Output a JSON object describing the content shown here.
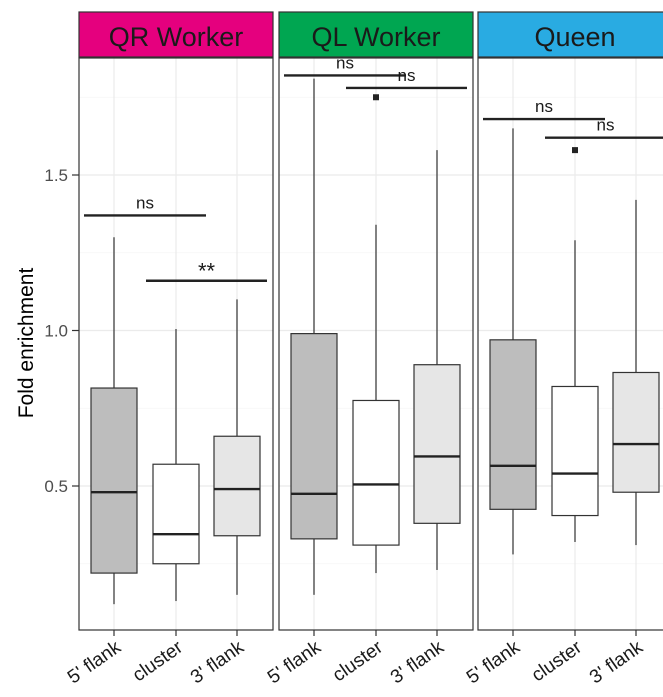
{
  "chart_data": {
    "type": "box",
    "ylabel": "Fold enrichment",
    "yticks": [
      0.5,
      1.0,
      1.5
    ],
    "ytick_labels": [
      "0.5",
      "1.0",
      "1.5"
    ],
    "ylim": [
      0.05,
      1.88
    ],
    "categories": [
      "5' flank",
      "cluster",
      "3' flank"
    ],
    "category_fills": [
      "#bdbdbd",
      "#ffffff",
      "#e6e6e6"
    ],
    "grid": true,
    "panels": [
      {
        "name": "QR Worker",
        "strip_color": "#e5007e",
        "boxes": [
          {
            "category": "5' flank",
            "whisker_low": 0.12,
            "q1": 0.22,
            "median": 0.48,
            "q3": 0.815,
            "whisker_high": 1.3,
            "outliers": []
          },
          {
            "category": "cluster",
            "whisker_low": 0.13,
            "q1": 0.25,
            "median": 0.345,
            "q3": 0.57,
            "whisker_high": 1.005,
            "outliers": []
          },
          {
            "category": "3' flank",
            "whisker_low": 0.15,
            "q1": 0.34,
            "median": 0.49,
            "q3": 0.66,
            "whisker_high": 1.1,
            "outliers": []
          }
        ],
        "comparisons": [
          {
            "from": 0,
            "to": 1,
            "y": 1.37,
            "label": "ns"
          },
          {
            "from": 1,
            "to": 2,
            "y": 1.16,
            "label": "**"
          }
        ]
      },
      {
        "name": "QL Worker",
        "strip_color": "#00a651",
        "boxes": [
          {
            "category": "5' flank",
            "whisker_low": 0.15,
            "q1": 0.33,
            "median": 0.475,
            "q3": 0.99,
            "whisker_high": 1.81,
            "outliers": []
          },
          {
            "category": "cluster",
            "whisker_low": 0.22,
            "q1": 0.31,
            "median": 0.505,
            "q3": 0.775,
            "whisker_high": 1.34,
            "outliers": [
              1.75
            ]
          },
          {
            "category": "3' flank",
            "whisker_low": 0.23,
            "q1": 0.38,
            "median": 0.595,
            "q3": 0.89,
            "whisker_high": 1.58,
            "outliers": []
          }
        ],
        "comparisons": [
          {
            "from": 0,
            "to": 1,
            "y": 1.82,
            "label": "ns"
          },
          {
            "from": 1,
            "to": 2,
            "y": 1.78,
            "label": "ns"
          }
        ]
      },
      {
        "name": "Queen",
        "strip_color": "#29abe2",
        "boxes": [
          {
            "category": "5' flank",
            "whisker_low": 0.28,
            "q1": 0.425,
            "median": 0.565,
            "q3": 0.97,
            "whisker_high": 1.65,
            "outliers": []
          },
          {
            "category": "cluster",
            "whisker_low": 0.32,
            "q1": 0.405,
            "median": 0.54,
            "q3": 0.82,
            "whisker_high": 1.29,
            "outliers": [
              1.58
            ]
          },
          {
            "category": "3' flank",
            "whisker_low": 0.31,
            "q1": 0.48,
            "median": 0.635,
            "q3": 0.865,
            "whisker_high": 1.42,
            "outliers": []
          }
        ],
        "comparisons": [
          {
            "from": 0,
            "to": 1,
            "y": 1.68,
            "label": "ns"
          },
          {
            "from": 1,
            "to": 2,
            "y": 1.62,
            "label": "ns"
          }
        ]
      }
    ]
  }
}
